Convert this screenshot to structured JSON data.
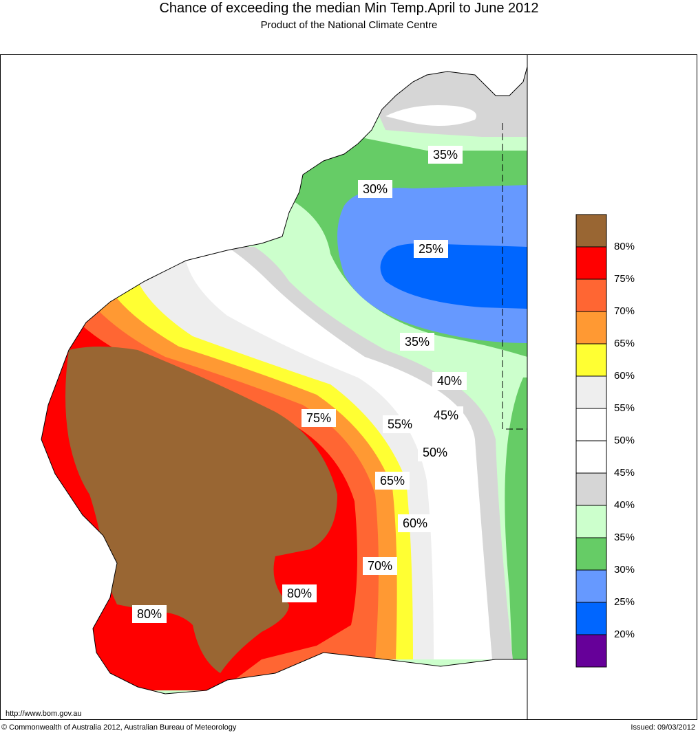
{
  "header": {
    "title": "Chance of exceeding the median Min Temp.April to June 2012",
    "subtitle": "Product of the National Climate Centre"
  },
  "map": {
    "contour_labels": [
      "35%",
      "30%",
      "25%",
      "35%",
      "40%",
      "45%",
      "55%",
      "50%",
      "75%",
      "65%",
      "60%",
      "70%",
      "80%",
      "80%"
    ]
  },
  "legend": {
    "items": [
      {
        "label": "80%",
        "color": "#996633"
      },
      {
        "label": "75%",
        "color": "#ff0000"
      },
      {
        "label": "70%",
        "color": "#ff6633"
      },
      {
        "label": "65%",
        "color": "#ff9933"
      },
      {
        "label": "60%",
        "color": "#ffff33"
      },
      {
        "label": "55%",
        "color": "#eeeeee"
      },
      {
        "label": "50%",
        "color": "#ffffff"
      },
      {
        "label": "45%",
        "color": "#ffffff"
      },
      {
        "label": "40%",
        "color": "#d6d6d6"
      },
      {
        "label": "35%",
        "color": "#ccffcc"
      },
      {
        "label": "30%",
        "color": "#66cc66"
      },
      {
        "label": "25%",
        "color": "#6699ff"
      },
      {
        "label": "20%",
        "color": "#0066ff"
      },
      {
        "label": "",
        "color": "#660099"
      }
    ]
  },
  "footer": {
    "url": "http://www.bom.gov.au",
    "copyright": "© Commonwealth of Australia 2012, Australian Bureau of Meteorology",
    "issued": "Issued: 09/03/2012"
  }
}
